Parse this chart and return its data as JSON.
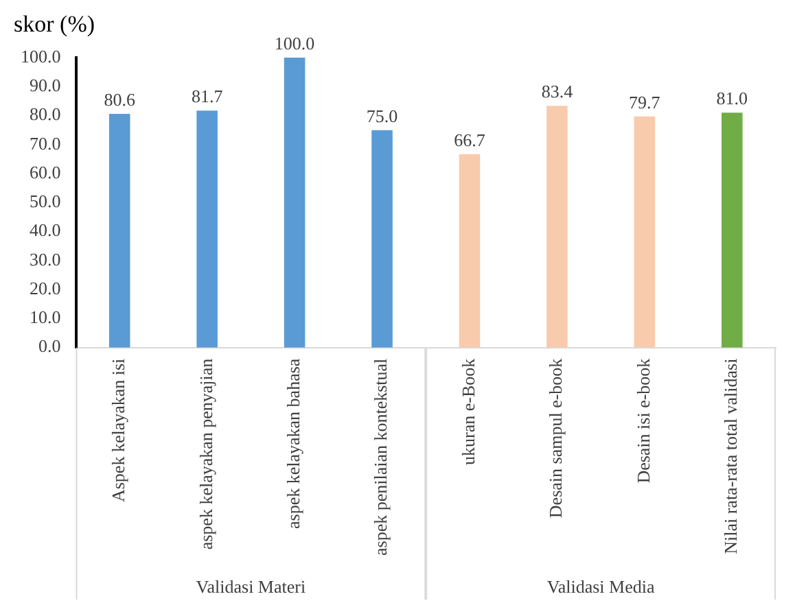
{
  "chart_data": {
    "type": "bar",
    "ylabel": "skor (%)",
    "categories": [
      "Aspek kelayakan isi",
      "aspek kelayakan penyajian",
      "aspek kelayakan bahasa",
      "aspek penilaian kontekstual",
      "ukuran e-Book",
      "Desain sampul e-book",
      "Desain isi e-book",
      "Nilai rata-rata total validasi"
    ],
    "values": [
      80.6,
      81.7,
      100.0,
      75.0,
      66.7,
      83.4,
      79.7,
      81.0
    ],
    "colors": [
      "#5b9bd5",
      "#5b9bd5",
      "#5b9bd5",
      "#5b9bd5",
      "#f8cbad",
      "#f8cbad",
      "#f8cbad",
      "#70ad47"
    ],
    "ylim": [
      0,
      100
    ],
    "yticks": [
      {
        "value": 0,
        "label": "0.0"
      },
      {
        "value": 10,
        "label": "10.0"
      },
      {
        "value": 20,
        "label": "20.0"
      },
      {
        "value": 30,
        "label": "30.0"
      },
      {
        "value": 40,
        "label": "40.0"
      },
      {
        "value": 50,
        "label": "50.0"
      },
      {
        "value": 60,
        "label": "60.0"
      },
      {
        "value": 70,
        "label": "70.0"
      },
      {
        "value": 80,
        "label": "80.0"
      },
      {
        "value": 90,
        "label": "90.0"
      },
      {
        "value": 100,
        "label": "100.0"
      }
    ],
    "value_labels": [
      "80.6",
      "81.7",
      "100.0",
      "75.0",
      "66.7",
      "83.4",
      "79.7",
      "81.0"
    ],
    "grid": false,
    "legend": false,
    "annotations": [
      "Validasi Materi",
      "Validasi Media"
    ]
  }
}
